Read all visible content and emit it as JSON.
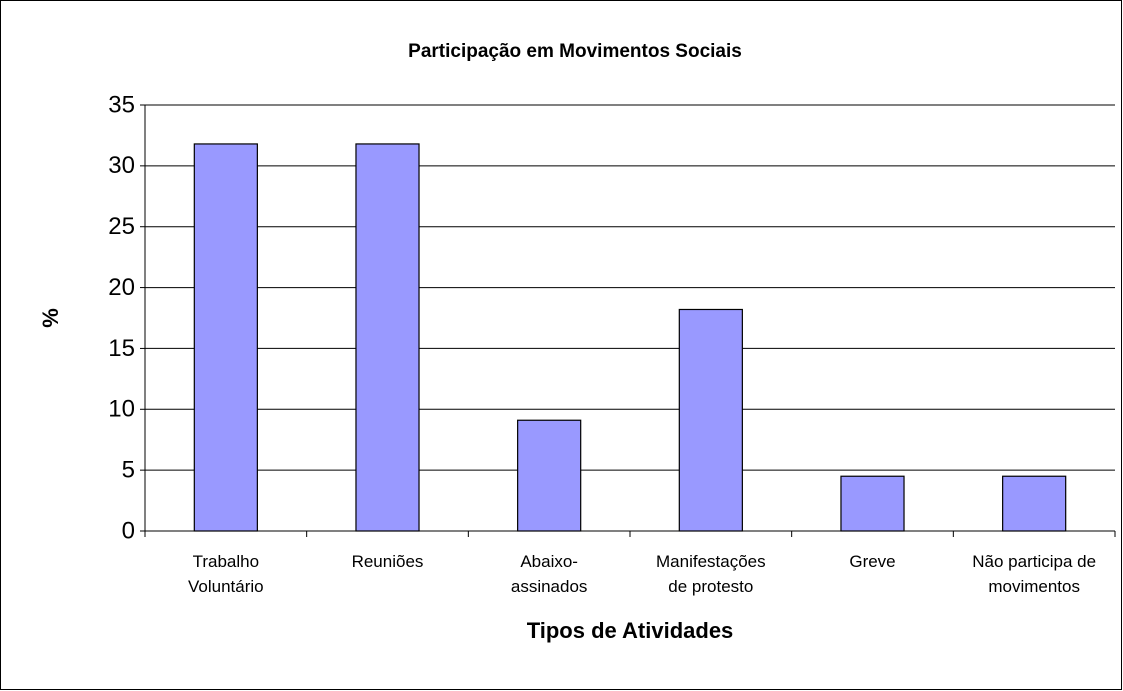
{
  "chart_data": {
    "type": "bar",
    "title": "Participação em Movimentos Sociais",
    "x_label": "Tipos de Atividades",
    "y_label": "%",
    "categories": [
      "Trabalho Voluntário",
      "Reuniões",
      "Abaixo-assinados",
      "Manifestações de protesto",
      "Greve",
      "Não participa de movimentos"
    ],
    "values": [
      31.8,
      31.8,
      9.1,
      18.2,
      4.5,
      4.5
    ],
    "color": "#9999ff",
    "ylim": [
      0,
      35
    ],
    "yticks": [
      0,
      5,
      10,
      15,
      20,
      25,
      30,
      35
    ],
    "grid": true
  }
}
